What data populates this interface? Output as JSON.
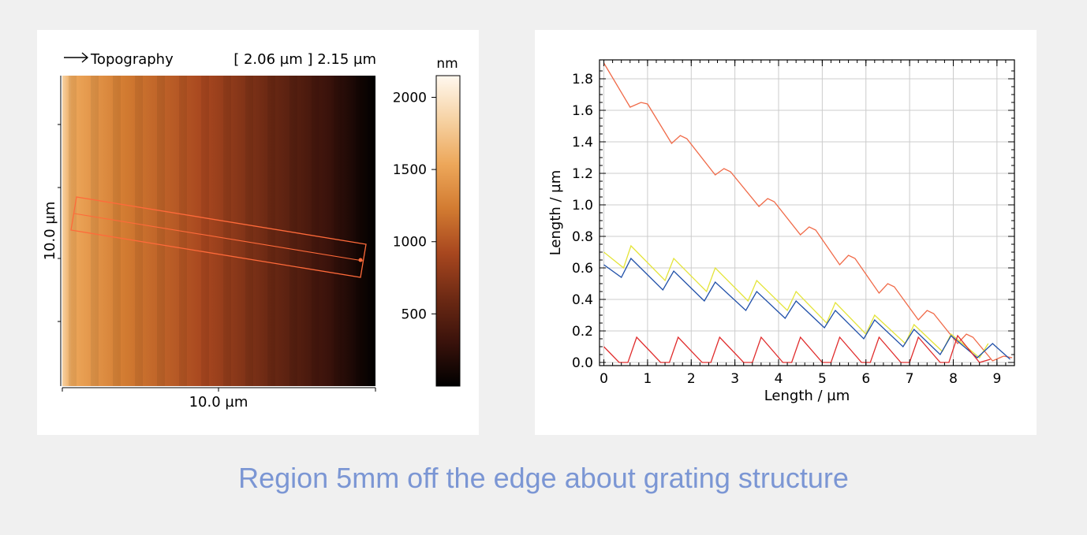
{
  "topography": {
    "title": "Topography",
    "height_readout": "[ 2.06 µm ] 2.15 µm",
    "x_axis_label": "10.0 µm",
    "y_axis_label": "10.0 µm",
    "colorbar_unit": "nm",
    "colorbar_ticks": [
      "2000",
      "1500",
      "1000",
      "500"
    ],
    "colorbar_range": [
      0,
      2150
    ],
    "colormap": [
      "#000000",
      "#3a120b",
      "#6e2a14",
      "#a8471f",
      "#d27b31",
      "#eda75a",
      "#f6d2a3",
      "#fff8ef"
    ],
    "selection_color": "#ff6a3a"
  },
  "chart_data": {
    "type": "line",
    "xlabel": "Length / µm",
    "ylabel": "Length / µm",
    "xlim": [
      -0.1,
      9.4
    ],
    "ylim": [
      -0.02,
      1.92
    ],
    "x_ticks": [
      "0",
      "1",
      "2",
      "3",
      "4",
      "5",
      "6",
      "7",
      "8",
      "9"
    ],
    "y_ticks": [
      "0.0",
      "0.2",
      "0.4",
      "0.6",
      "0.8",
      "1.0",
      "1.2",
      "1.4",
      "1.6",
      "1.8"
    ],
    "grid": true,
    "series": [
      {
        "color": "#f06a48",
        "x": [
          0,
          0.6,
          0.85,
          1.0,
          1.55,
          1.75,
          1.9,
          2.55,
          2.75,
          2.9,
          3.55,
          3.75,
          3.9,
          4.5,
          4.7,
          4.85,
          5.4,
          5.6,
          5.75,
          6.3,
          6.5,
          6.65,
          7.2,
          7.4,
          7.55,
          8.1,
          8.3,
          8.45,
          8.9,
          9.15,
          9.35
        ],
        "y": [
          1.9,
          1.62,
          1.65,
          1.64,
          1.39,
          1.44,
          1.42,
          1.19,
          1.23,
          1.21,
          0.99,
          1.04,
          1.02,
          0.81,
          0.86,
          0.84,
          0.62,
          0.68,
          0.66,
          0.44,
          0.5,
          0.48,
          0.27,
          0.33,
          0.31,
          0.12,
          0.18,
          0.16,
          0.01,
          0.04,
          0.03
        ]
      },
      {
        "color": "#e4e43a",
        "x": [
          0,
          0.45,
          0.62,
          1.4,
          1.6,
          2.35,
          2.55,
          3.3,
          3.5,
          4.2,
          4.4,
          5.1,
          5.3,
          6.0,
          6.2,
          6.9,
          7.1,
          7.75,
          7.95,
          8.6,
          8.8
        ],
        "y": [
          0.7,
          0.6,
          0.74,
          0.52,
          0.66,
          0.45,
          0.6,
          0.39,
          0.52,
          0.33,
          0.45,
          0.25,
          0.38,
          0.18,
          0.3,
          0.12,
          0.24,
          0.07,
          0.18,
          0.03,
          0.12
        ]
      },
      {
        "color": "#1f4fa8",
        "x": [
          0,
          0.4,
          0.62,
          1.35,
          1.6,
          2.3,
          2.55,
          3.25,
          3.5,
          4.15,
          4.4,
          5.05,
          5.3,
          5.95,
          6.2,
          6.85,
          7.1,
          7.7,
          7.95,
          8.55,
          8.9,
          9.3
        ],
        "y": [
          0.62,
          0.54,
          0.66,
          0.46,
          0.58,
          0.39,
          0.51,
          0.33,
          0.45,
          0.28,
          0.39,
          0.22,
          0.33,
          0.15,
          0.27,
          0.1,
          0.21,
          0.05,
          0.17,
          0.03,
          0.12,
          0.02
        ]
      },
      {
        "color": "#e02c2c",
        "x": [
          0,
          0.35,
          0.55,
          0.75,
          1.3,
          1.5,
          1.7,
          2.25,
          2.45,
          2.65,
          3.2,
          3.4,
          3.6,
          4.1,
          4.3,
          4.5,
          5.0,
          5.2,
          5.4,
          5.9,
          6.1,
          6.3,
          6.8,
          7.0,
          7.2,
          7.7,
          7.9,
          8.1,
          8.6,
          8.85
        ],
        "y": [
          0.1,
          0.0,
          0.0,
          0.16,
          0.0,
          0.0,
          0.16,
          0.0,
          0.0,
          0.16,
          0.0,
          0.0,
          0.16,
          0.0,
          0.0,
          0.16,
          0.0,
          0.0,
          0.16,
          0.0,
          0.0,
          0.16,
          0.0,
          0.0,
          0.16,
          0.0,
          0.0,
          0.17,
          0.0,
          0.02
        ]
      }
    ]
  },
  "caption": "Region 5mm off the edge about grating structure"
}
